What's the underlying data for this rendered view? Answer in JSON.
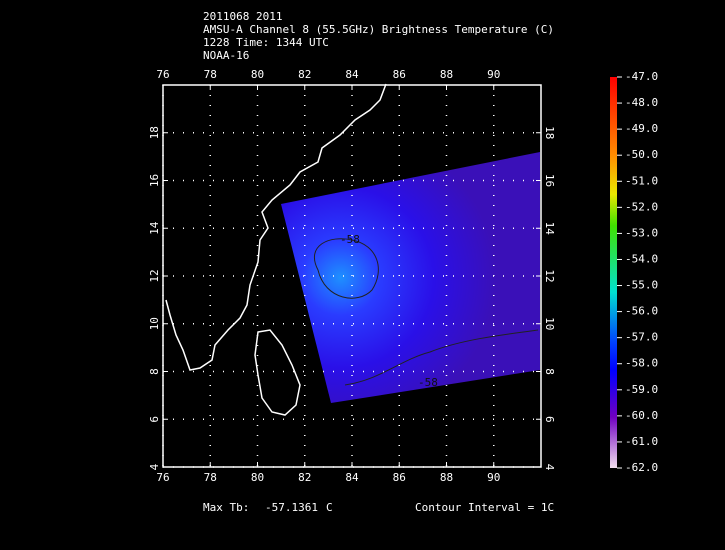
{
  "header": {
    "lines": [
      "2011068 2011",
      "AMSU-A Channel 8 (55.5GHz) Brightness Temperature (C)",
      "1228 Time: 1344 UTC",
      "NOAA-16"
    ]
  },
  "map": {
    "xlim": [
      76,
      92
    ],
    "ylim": [
      4,
      20
    ],
    "xticks": [
      76,
      78,
      80,
      82,
      84,
      86,
      88,
      90
    ],
    "yticks": [
      4,
      6,
      8,
      10,
      12,
      14,
      16,
      18
    ],
    "contour_labels": [
      "-58",
      "-58"
    ]
  },
  "colorbar": {
    "lim": [
      -62,
      -47
    ],
    "ticks": [
      {
        "value": -47,
        "label": "-47.0"
      },
      {
        "value": -48,
        "label": "-48.0"
      },
      {
        "value": -49,
        "label": "-49.0"
      },
      {
        "value": -50,
        "label": "-50.0"
      },
      {
        "value": -51,
        "label": "-51.0"
      },
      {
        "value": -52,
        "label": "-52.0"
      },
      {
        "value": -53,
        "label": "-53.0"
      },
      {
        "value": -54,
        "label": "-54.0"
      },
      {
        "value": -55,
        "label": "-55.0"
      },
      {
        "value": -56,
        "label": "-56.0"
      },
      {
        "value": -57,
        "label": "-57.0"
      },
      {
        "value": -58,
        "label": "-58.0"
      },
      {
        "value": -59,
        "label": "-59.0"
      },
      {
        "value": -60,
        "label": "-60.0"
      },
      {
        "value": -61,
        "label": "-61.0"
      },
      {
        "value": -62,
        "label": "-62.0"
      }
    ]
  },
  "footer": {
    "max_label": "Max Tb:",
    "max_value": -57.1361,
    "unit": "C",
    "contour": "Contour Interval = 1C"
  }
}
